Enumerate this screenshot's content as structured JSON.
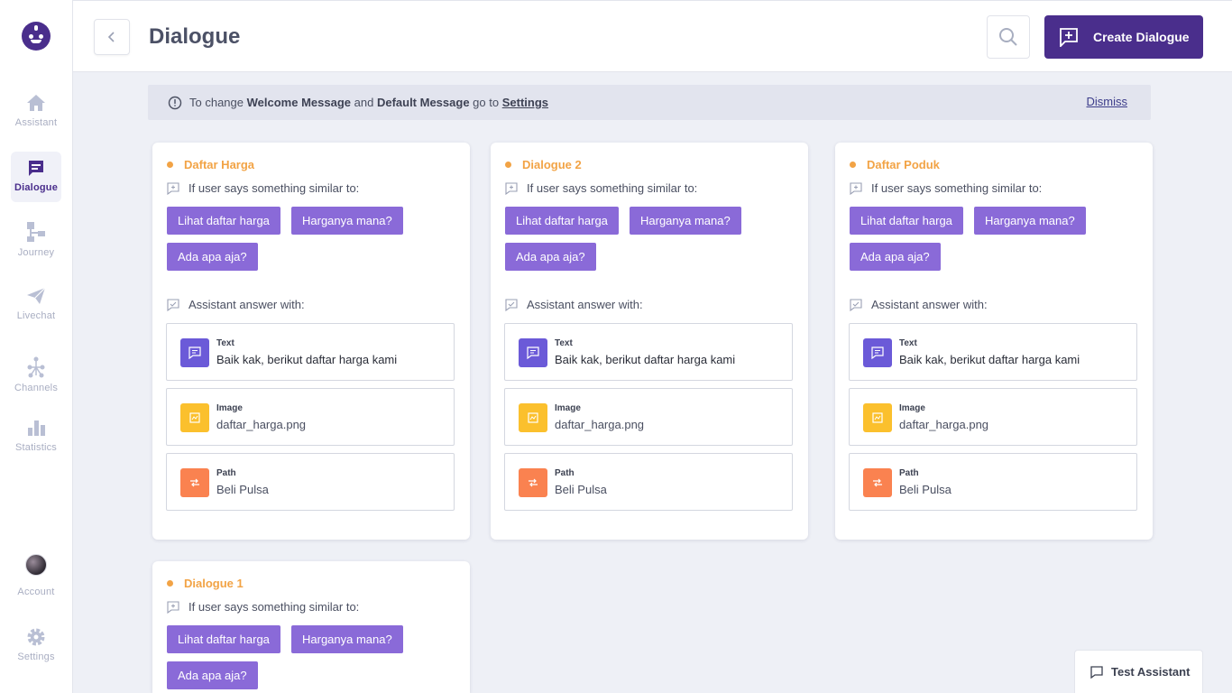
{
  "sidebar": {
    "items": [
      {
        "label": "Assistant",
        "icon": "home-icon"
      },
      {
        "label": "Dialogue",
        "icon": "chat-icon"
      },
      {
        "label": "Journey",
        "icon": "flow-icon"
      },
      {
        "label": "Livechat",
        "icon": "send-icon"
      },
      {
        "label": "Channels",
        "icon": "channels-icon"
      },
      {
        "label": "Statistics",
        "icon": "bar-chart-icon"
      }
    ],
    "account_label": "Account",
    "settings_label": "Settings"
  },
  "header": {
    "title": "Dialogue",
    "create_label": "Create Dialogue"
  },
  "banner": {
    "pre": "To change",
    "welcome": "Welcome Message",
    "and": "and",
    "default": "Default Message",
    "goto": "go to",
    "settings_link": "Settings",
    "dismiss": "Dismiss"
  },
  "cards": [
    {
      "title": "Daftar Harga",
      "user_says": "If user says something similar to:",
      "chips": [
        "Lihat daftar harga",
        "Harganya mana?",
        "Ada apa aja?"
      ],
      "answer_label": "Assistant answer with:",
      "answers": [
        {
          "type": "Text",
          "value": "Baik kak, berikut daftar harga kami"
        },
        {
          "type": "Image",
          "value": "daftar_harga.png"
        },
        {
          "type": "Path",
          "value": "Beli Pulsa"
        }
      ]
    },
    {
      "title": "Dialogue 2",
      "user_says": "If user says something similar to:",
      "chips": [
        "Lihat daftar harga",
        "Harganya mana?",
        "Ada apa aja?"
      ],
      "answer_label": "Assistant answer with:",
      "answers": [
        {
          "type": "Text",
          "value": "Baik kak, berikut daftar harga kami"
        },
        {
          "type": "Image",
          "value": "daftar_harga.png"
        },
        {
          "type": "Path",
          "value": "Beli Pulsa"
        }
      ]
    },
    {
      "title": "Daftar Poduk",
      "user_says": "If user says something similar to:",
      "chips": [
        "Lihat daftar harga",
        "Harganya mana?",
        "Ada apa aja?"
      ],
      "answer_label": "Assistant answer with:",
      "answers": [
        {
          "type": "Text",
          "value": "Baik kak, berikut daftar harga kami"
        },
        {
          "type": "Image",
          "value": "daftar_harga.png"
        },
        {
          "type": "Path",
          "value": "Beli Pulsa"
        }
      ]
    },
    {
      "title": "Dialogue 1",
      "user_says": "If user says something similar to:",
      "chips": [
        "Lihat daftar harga",
        "Harganya mana?",
        "Ada apa aja?"
      ]
    }
  ],
  "test_assistant_label": "Test Assistant",
  "colors": {
    "brand": "#4a2e8c",
    "chip": "#8a6ad8",
    "title_accent": "#f2a345",
    "text_icon": "#6b5ad8",
    "image_icon": "#fbc02d",
    "path_icon": "#fa8250"
  }
}
